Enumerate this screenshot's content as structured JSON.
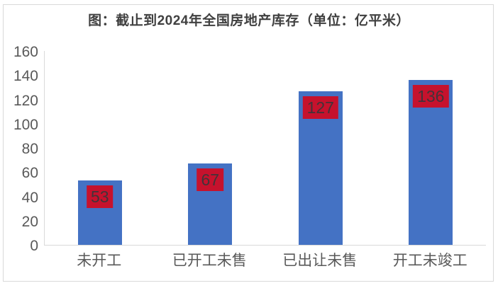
{
  "chart_data": {
    "type": "bar",
    "title": "图：截止到2024年全国房地产库存（单位：亿平米）",
    "categories": [
      "未开工",
      "已开工未售",
      "已出让未售",
      "开工未竣工"
    ],
    "values": [
      53,
      67,
      127,
      136
    ],
    "data_labels": [
      "53",
      "67",
      "127",
      "136"
    ],
    "xlabel": "",
    "ylabel": "",
    "ylim": [
      0,
      160
    ],
    "yticks": [
      0,
      20,
      40,
      60,
      80,
      100,
      120,
      140,
      160
    ],
    "grid": false,
    "legend": "none",
    "colors": {
      "bar_fill": "#4472c4",
      "value_label_bg": "#c6122d",
      "value_label_text": "#433339",
      "title_text": "#404040",
      "axis_tick_text": "#595959",
      "axis_line": "#d9d9d9",
      "frame_border": "#d9d9d9",
      "background": "#ffffff"
    }
  }
}
